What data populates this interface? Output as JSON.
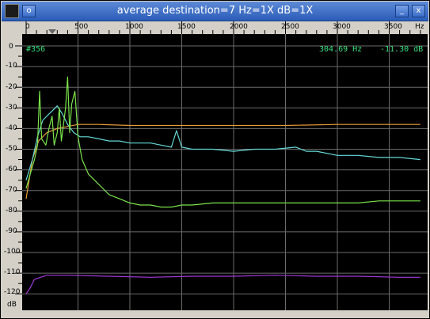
{
  "window": {
    "title": "average   destination=7 Hz=1X dB=1X",
    "buttons": {
      "menu": "o",
      "minimize": "_",
      "close": "x"
    }
  },
  "ruler": {
    "x_ticks": [
      "0",
      "500",
      "1000",
      "1500",
      "2000",
      "2500",
      "3000",
      "3500",
      "Hz"
    ],
    "y_ticks": [
      "0",
      "-10",
      "-20",
      "-30",
      "-40",
      "-50",
      "-60",
      "-70",
      "-80",
      "-90",
      "-100",
      "-110",
      "-120",
      "dB"
    ]
  },
  "readout": {
    "index": "#356",
    "frequency": "304.69 Hz",
    "level": "-11.30 dB"
  },
  "colors": {
    "orange": "#e89a3a",
    "cyan": "#66d8d8",
    "green": "#7be34a",
    "purple": "#a23ad8",
    "grid": "#6b6b6b",
    "readout": "#3adf7a"
  },
  "chart_data": {
    "type": "line",
    "title": "",
    "xlabel": "Hz",
    "ylabel": "dB",
    "xlim": [
      0,
      3800
    ],
    "ylim": [
      -124,
      0
    ],
    "grid": true,
    "series": [
      {
        "name": "",
        "color": "orange",
        "points": [
          [
            0,
            -74
          ],
          [
            60,
            -55
          ],
          [
            120,
            -46
          ],
          [
            200,
            -42
          ],
          [
            300,
            -40
          ],
          [
            400,
            -39
          ],
          [
            500,
            -38
          ],
          [
            700,
            -38
          ],
          [
            1000,
            -38.5
          ],
          [
            1500,
            -38.5
          ],
          [
            2000,
            -38.5
          ],
          [
            2500,
            -38.5
          ],
          [
            3000,
            -38
          ],
          [
            3500,
            -38
          ],
          [
            3800,
            -38
          ]
        ]
      },
      {
        "name": "",
        "color": "cyan",
        "points": [
          [
            0,
            -65
          ],
          [
            60,
            -55
          ],
          [
            110,
            -44
          ],
          [
            160,
            -36
          ],
          [
            220,
            -33
          ],
          [
            260,
            -31
          ],
          [
            300,
            -29
          ],
          [
            350,
            -33
          ],
          [
            400,
            -38
          ],
          [
            460,
            -42
          ],
          [
            520,
            -44
          ],
          [
            600,
            -44
          ],
          [
            700,
            -45
          ],
          [
            800,
            -46
          ],
          [
            900,
            -46
          ],
          [
            1000,
            -47
          ],
          [
            1100,
            -47
          ],
          [
            1200,
            -47
          ],
          [
            1300,
            -48
          ],
          [
            1400,
            -49
          ],
          [
            1450,
            -41
          ],
          [
            1500,
            -49
          ],
          [
            1600,
            -50
          ],
          [
            1800,
            -50
          ],
          [
            2000,
            -51
          ],
          [
            2200,
            -50
          ],
          [
            2400,
            -50
          ],
          [
            2600,
            -49
          ],
          [
            2700,
            -51
          ],
          [
            2800,
            -51
          ],
          [
            3000,
            -53
          ],
          [
            3200,
            -53
          ],
          [
            3400,
            -54
          ],
          [
            3600,
            -54
          ],
          [
            3800,
            -55
          ]
        ]
      },
      {
        "name": "",
        "color": "green",
        "points": [
          [
            0,
            -69
          ],
          [
            40,
            -62
          ],
          [
            80,
            -55
          ],
          [
            110,
            -48
          ],
          [
            130,
            -22
          ],
          [
            150,
            -45
          ],
          [
            190,
            -48
          ],
          [
            220,
            -40
          ],
          [
            250,
            -34
          ],
          [
            270,
            -48
          ],
          [
            300,
            -42
          ],
          [
            320,
            -30
          ],
          [
            340,
            -46
          ],
          [
            380,
            -30
          ],
          [
            400,
            -15
          ],
          [
            420,
            -42
          ],
          [
            440,
            -28
          ],
          [
            470,
            -22
          ],
          [
            500,
            -44
          ],
          [
            540,
            -55
          ],
          [
            600,
            -62
          ],
          [
            700,
            -67
          ],
          [
            800,
            -72
          ],
          [
            900,
            -74
          ],
          [
            1000,
            -76
          ],
          [
            1100,
            -77
          ],
          [
            1200,
            -77
          ],
          [
            1300,
            -78
          ],
          [
            1400,
            -78
          ],
          [
            1500,
            -77
          ],
          [
            1600,
            -77
          ],
          [
            1800,
            -76
          ],
          [
            2000,
            -76
          ],
          [
            2200,
            -76
          ],
          [
            2400,
            -76
          ],
          [
            2600,
            -76
          ],
          [
            2800,
            -76
          ],
          [
            3000,
            -76
          ],
          [
            3200,
            -76
          ],
          [
            3400,
            -75
          ],
          [
            3600,
            -75
          ],
          [
            3800,
            -75
          ]
        ]
      },
      {
        "name": "",
        "color": "purple",
        "points": [
          [
            0,
            -120
          ],
          [
            40,
            -117
          ],
          [
            80,
            -113
          ],
          [
            200,
            -111
          ],
          [
            400,
            -111
          ],
          [
            800,
            -111.5
          ],
          [
            1200,
            -112
          ],
          [
            1600,
            -111.5
          ],
          [
            2000,
            -111.5
          ],
          [
            2400,
            -111
          ],
          [
            2800,
            -111.5
          ],
          [
            3200,
            -111.5
          ],
          [
            3600,
            -112
          ],
          [
            3800,
            -112
          ]
        ]
      }
    ]
  }
}
